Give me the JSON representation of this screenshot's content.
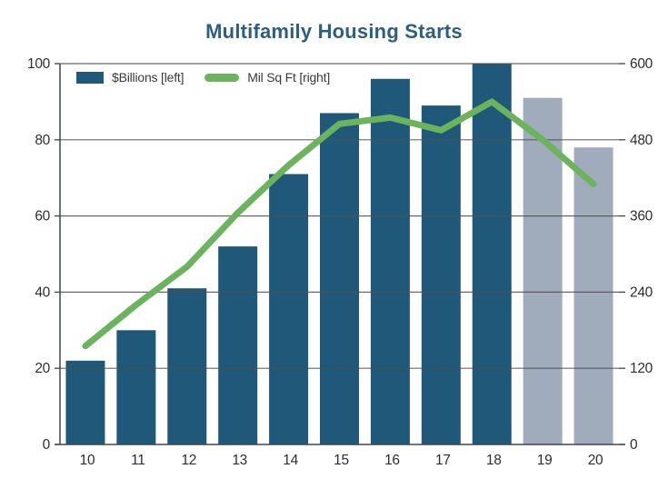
{
  "title": "Multifamily Housing Starts",
  "legend": {
    "bar_label": "$Billions [left]",
    "line_label": "Mil Sq Ft [right]"
  },
  "colors": {
    "bar": "#20587a",
    "bar_forecast": "#a0abbc",
    "line": "#6cb35e",
    "title": "#2d5f7e",
    "axis_text": "#2e2e2e",
    "grid": "#4f4f4f",
    "spine": "#3f464c",
    "background": "#ffffff"
  },
  "chart_data": {
    "type": "bar+line",
    "title": "Multifamily Housing Starts",
    "categories": [
      "10",
      "11",
      "12",
      "13",
      "14",
      "15",
      "16",
      "17",
      "18",
      "19",
      "20"
    ],
    "series": [
      {
        "name": "$Billions [left]",
        "type": "bar",
        "axis": "left",
        "values": [
          22,
          30,
          41,
          52,
          71,
          87,
          96,
          89,
          100,
          91,
          78
        ]
      },
      {
        "name": "Mil Sq Ft [right]",
        "type": "line",
        "axis": "right",
        "values": [
          155,
          220,
          280,
          365,
          440,
          505,
          515,
          495,
          540,
          480,
          410
        ]
      }
    ],
    "left_axis": {
      "min": 0,
      "max": 100,
      "ticks": [
        0,
        20,
        40,
        60,
        80,
        100
      ]
    },
    "right_axis": {
      "min": 0,
      "max": 600,
      "ticks": [
        0,
        120,
        240,
        360,
        480,
        600
      ]
    },
    "forecast_start_index": 9,
    "grid": "horizontal",
    "legend_position": "top-left-inside"
  }
}
